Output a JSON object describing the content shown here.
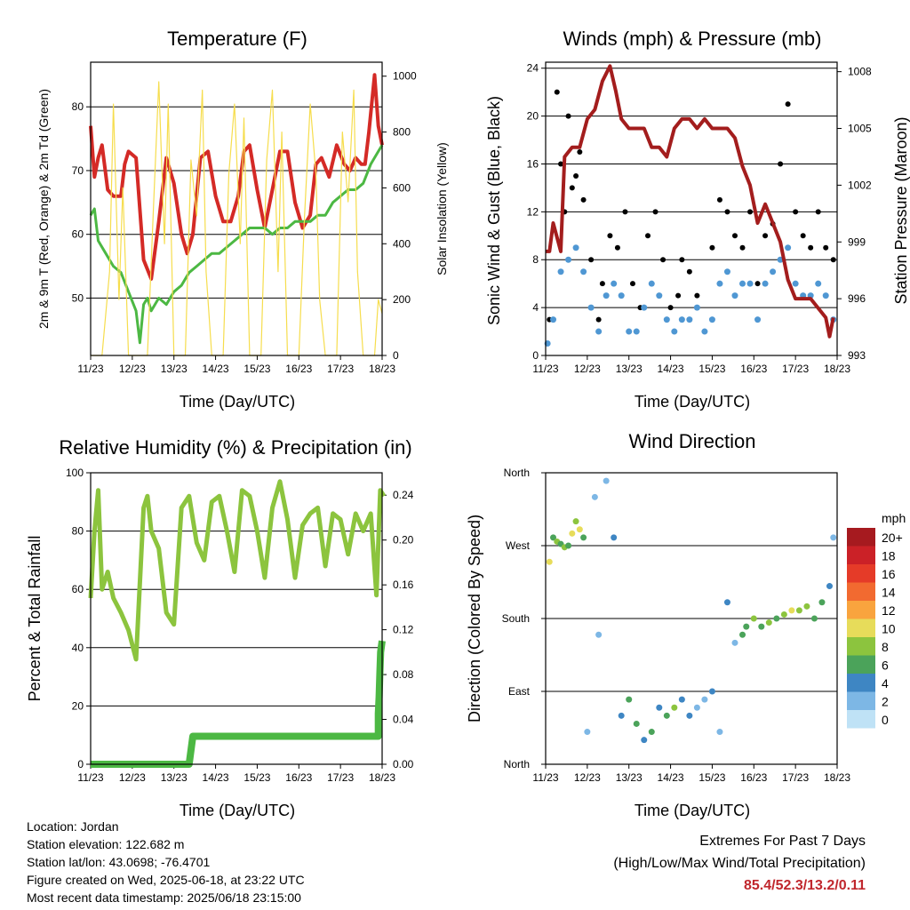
{
  "time_ticks": [
    "11/23",
    "12/23",
    "13/23",
    "14/23",
    "15/23",
    "16/23",
    "17/23",
    "18/23"
  ],
  "footer": {
    "location": "Location: Jordan",
    "elevation": "Station elevation: 122.682 m",
    "latlon": "Station lat/lon: 43.0698; -76.4701",
    "created": "Figure created on Wed, 2025-06-18, at 23:22 UTC",
    "timestamp": "Most recent data timestamp: 2025/06/18 23:15:00"
  },
  "extremes": {
    "title": "Extremes For Past 7 Days",
    "subtitle": "(High/Low/Max Wind/Total Precipitation)",
    "values": "85.4/52.3/13.2/0.11"
  },
  "colors": {
    "temp_red": "#d42a26",
    "temp_orange": "#f08a30",
    "dewpoint": "#4cb843",
    "solar": "#f6dd4d",
    "wind": "#4f97d3",
    "gust": "#000000",
    "pressure": "#a31d1d",
    "rh": "#8cc43e",
    "precip": "#4cb843"
  },
  "chart_data": [
    {
      "type": "line",
      "title": "Temperature (F)",
      "xlabel": "Time (Day/UTC)",
      "ylabel": "2m & 9m T (Red, Orange) & 2m Td (Green)",
      "ylabel_right": "Solar Insolation (Yellow)",
      "x_ticks": [
        "11/23",
        "12/23",
        "13/23",
        "14/23",
        "15/23",
        "16/23",
        "17/23",
        "18/23"
      ],
      "y_ticks": [
        50,
        60,
        70,
        80
      ],
      "y2_ticks": [
        0,
        200,
        400,
        600,
        800,
        1000
      ],
      "ylim": [
        41,
        87
      ],
      "y2lim": [
        0,
        1050
      ],
      "series": [
        {
          "name": "2m T",
          "color": "#d42a26",
          "width": 4,
          "x": [
            0,
            0.1,
            0.2,
            0.3,
            0.45,
            0.6,
            0.8,
            0.9,
            1.0,
            1.2,
            1.4,
            1.6,
            1.8,
            2.0,
            2.2,
            2.4,
            2.55,
            2.7,
            2.9,
            3.1,
            3.3,
            3.5,
            3.7,
            3.9,
            4.05,
            4.2,
            4.4,
            4.6,
            4.8,
            5.0,
            5.2,
            5.4,
            5.6,
            5.8,
            5.95,
            6.1,
            6.3,
            6.5,
            6.7,
            6.85,
            7.0,
            7.15,
            7.25,
            7.35,
            7.5,
            7.6,
            7.7
          ],
          "values": [
            77,
            69,
            72,
            74,
            67,
            66,
            66,
            71,
            73,
            72,
            56,
            53,
            62,
            72,
            68,
            60,
            57,
            60,
            72,
            73,
            66,
            62,
            62,
            66,
            73,
            74,
            67,
            61,
            67,
            73,
            73,
            65,
            61,
            63,
            71,
            72,
            69,
            74,
            71,
            70,
            72,
            71,
            71,
            76,
            85,
            77,
            74
          ]
        },
        {
          "name": "2m Td",
          "color": "#4cb843",
          "width": 3,
          "x": [
            0,
            0.1,
            0.2,
            0.4,
            0.6,
            0.8,
            1.0,
            1.2,
            1.3,
            1.4,
            1.5,
            1.6,
            1.8,
            2.0,
            2.2,
            2.4,
            2.6,
            2.8,
            3.0,
            3.2,
            3.4,
            3.6,
            3.8,
            4.0,
            4.2,
            4.4,
            4.6,
            4.8,
            5.0,
            5.2,
            5.4,
            5.6,
            5.8,
            6.0,
            6.2,
            6.4,
            6.6,
            6.8,
            7.0,
            7.2,
            7.4,
            7.6,
            7.7
          ],
          "values": [
            63,
            64,
            59,
            57,
            55,
            54,
            51,
            48,
            43,
            49,
            50,
            48,
            50,
            49,
            51,
            52,
            54,
            55,
            56,
            57,
            57,
            58,
            59,
            60,
            61,
            61,
            61,
            60,
            61,
            61,
            62,
            62,
            62,
            63,
            63,
            65,
            66,
            67,
            67,
            68,
            71,
            73,
            74
          ]
        },
        {
          "name": "Solar Insolation",
          "axis": "right",
          "color": "#f6dd4d",
          "width": 1.2,
          "x": [
            0,
            0.3,
            0.5,
            0.6,
            0.75,
            0.85,
            1.0,
            1.5,
            1.65,
            1.8,
            1.95,
            2.05,
            2.2,
            2.5,
            2.65,
            2.8,
            2.95,
            3.05,
            3.2,
            3.5,
            3.65,
            3.8,
            3.95,
            4.05,
            4.2,
            4.5,
            4.65,
            4.8,
            4.95,
            5.05,
            5.2,
            5.5,
            5.65,
            5.8,
            5.95,
            6.05,
            6.2,
            6.5,
            6.65,
            6.8,
            6.95,
            7.05,
            7.2,
            7.5,
            7.6,
            7.7
          ],
          "values": [
            0,
            0,
            300,
            900,
            200,
            600,
            0,
            0,
            500,
            980,
            400,
            900,
            0,
            0,
            700,
            500,
            950,
            300,
            0,
            0,
            650,
            900,
            400,
            850,
            0,
            0,
            700,
            950,
            300,
            800,
            0,
            0,
            500,
            900,
            650,
            200,
            0,
            0,
            800,
            550,
            950,
            300,
            0,
            0,
            200,
            150
          ]
        }
      ]
    },
    {
      "type": "scatter",
      "title": "Winds (mph) & Pressure (mb)",
      "xlabel": "Time (Day/UTC)",
      "ylabel": "Sonic Wind & Gust (Blue, Black)",
      "ylabel_right": "Station Pressure (Maroon)",
      "x_ticks": [
        "11/23",
        "12/23",
        "13/23",
        "14/23",
        "15/23",
        "16/23",
        "17/23",
        "18/23"
      ],
      "y_ticks": [
        0,
        4,
        8,
        12,
        16,
        20,
        24
      ],
      "y2_ticks": [
        993,
        996,
        999,
        1002,
        1005,
        1008
      ],
      "ylim": [
        0,
        24.5
      ],
      "y2lim": [
        993,
        1008.5
      ],
      "series": [
        {
          "name": "Gust",
          "color": "#000000",
          "x": [
            0.1,
            0.3,
            0.4,
            0.5,
            0.6,
            0.7,
            0.8,
            0.9,
            1.0,
            1.2,
            1.4,
            1.5,
            1.7,
            1.9,
            2.1,
            2.3,
            2.5,
            2.7,
            2.9,
            3.1,
            3.3,
            3.5,
            3.6,
            3.8,
            4.0,
            4.2,
            4.4,
            4.6,
            4.8,
            5.0,
            5.2,
            5.4,
            5.6,
            5.8,
            6.0,
            6.2,
            6.4,
            6.6,
            6.8,
            7.0,
            7.2,
            7.4,
            7.6
          ],
          "values": [
            3,
            22,
            16,
            12,
            20,
            14,
            15,
            17,
            13,
            8,
            3,
            6,
            10,
            9,
            12,
            6,
            4,
            10,
            12,
            8,
            4,
            5,
            8,
            7,
            5,
            2,
            9,
            13,
            12,
            10,
            9,
            12,
            6,
            10,
            11,
            16,
            21,
            12,
            10,
            9,
            12,
            9,
            8
          ]
        },
        {
          "name": "Wind",
          "color": "#4f97d3",
          "x": [
            0.05,
            0.2,
            0.4,
            0.6,
            0.8,
            1.0,
            1.2,
            1.4,
            1.6,
            1.8,
            2.0,
            2.2,
            2.4,
            2.6,
            2.8,
            3.0,
            3.2,
            3.4,
            3.6,
            3.8,
            4.0,
            4.2,
            4.4,
            4.6,
            4.8,
            5.0,
            5.2,
            5.4,
            5.6,
            5.8,
            6.0,
            6.2,
            6.4,
            6.6,
            6.8,
            7.0,
            7.2,
            7.4,
            7.6
          ],
          "values": [
            1,
            3,
            7,
            8,
            9,
            7,
            4,
            2,
            5,
            6,
            5,
            2,
            2,
            4,
            6,
            5,
            3,
            2,
            3,
            3,
            4,
            2,
            3,
            6,
            7,
            5,
            6,
            6,
            3,
            6,
            7,
            8,
            9,
            6,
            5,
            5,
            6,
            5,
            3
          ]
        },
        {
          "name": "Station Pressure",
          "axis": "right",
          "color": "#a31d1d",
          "width": 4,
          "x": [
            0,
            0.1,
            0.2,
            0.4,
            0.5,
            0.7,
            0.9,
            1.1,
            1.3,
            1.5,
            1.7,
            1.85,
            2.0,
            2.2,
            2.4,
            2.6,
            2.8,
            3.0,
            3.2,
            3.4,
            3.6,
            3.8,
            4.0,
            4.2,
            4.4,
            4.6,
            4.8,
            5.0,
            5.2,
            5.4,
            5.6,
            5.8,
            6.0,
            6.2,
            6.4,
            6.6,
            6.8,
            7.0,
            7.2,
            7.4,
            7.5,
            7.6
          ],
          "values": [
            998.5,
            998.5,
            1000,
            998.5,
            1003.5,
            1004,
            1004,
            1005.5,
            1006,
            1007.5,
            1008.3,
            1007,
            1005.5,
            1005,
            1005,
            1005,
            1004,
            1004,
            1003.5,
            1005,
            1005.5,
            1005.5,
            1005,
            1005.5,
            1005,
            1005,
            1005,
            1004.5,
            1003,
            1002,
            1000,
            1001,
            1000,
            999,
            997,
            996,
            996,
            996,
            995.5,
            995,
            994,
            995
          ]
        }
      ]
    },
    {
      "type": "line",
      "title": "Relative Humidity (%) & Precipitation (in)",
      "xlabel": "Time (Day/UTC)",
      "ylabel": "Percent & Total Rainfall",
      "x_ticks": [
        "11/23",
        "12/23",
        "13/23",
        "14/23",
        "15/23",
        "16/23",
        "17/23",
        "18/23"
      ],
      "y_ticks": [
        0,
        20,
        40,
        60,
        80,
        100
      ],
      "y2_ticks": [
        "0.00",
        "0.04",
        "0.08",
        "0.12",
        "0.16",
        "0.20",
        "0.24"
      ],
      "ylim": [
        0,
        100
      ],
      "y2lim": [
        0,
        0.26
      ],
      "series": [
        {
          "name": "Relative Humidity",
          "color": "#8cc43e",
          "width": 5,
          "x": [
            0,
            0.1,
            0.2,
            0.3,
            0.45,
            0.6,
            0.8,
            1.0,
            1.2,
            1.4,
            1.5,
            1.6,
            1.8,
            2.0,
            2.2,
            2.4,
            2.6,
            2.8,
            3.0,
            3.2,
            3.4,
            3.6,
            3.8,
            4.0,
            4.2,
            4.4,
            4.6,
            4.8,
            5.0,
            5.2,
            5.4,
            5.6,
            5.8,
            6.0,
            6.2,
            6.4,
            6.6,
            6.8,
            7.0,
            7.2,
            7.4,
            7.55,
            7.65,
            7.75
          ],
          "values": [
            57,
            80,
            94,
            60,
            66,
            57,
            52,
            46,
            36,
            88,
            92,
            80,
            74,
            52,
            48,
            88,
            92,
            76,
            70,
            90,
            92,
            80,
            66,
            94,
            92,
            80,
            64,
            88,
            97,
            84,
            64,
            82,
            86,
            88,
            68,
            86,
            84,
            72,
            86,
            80,
            86,
            58,
            94,
            92
          ]
        },
        {
          "name": "Total Precipitation",
          "axis": "right",
          "color": "#4cb843",
          "width": 8,
          "x": [
            0,
            1,
            2,
            2.6,
            2.7,
            3,
            4,
            5,
            6,
            7,
            7.6,
            7.6,
            7.62,
            7.64,
            7.66,
            7.7
          ],
          "values": [
            0,
            0,
            0,
            0,
            0.025,
            0.025,
            0.025,
            0.025,
            0.025,
            0.025,
            0.025,
            0.045,
            0.06,
            0.08,
            0.1,
            0.11
          ]
        }
      ]
    },
    {
      "type": "scatter",
      "title": "Wind Direction",
      "xlabel": "Time (Day/UTC)",
      "ylabel": "Direction (Colored By Speed)",
      "x_ticks": [
        "11/23",
        "12/23",
        "13/23",
        "14/23",
        "15/23",
        "16/23",
        "17/23",
        "18/23"
      ],
      "y_ticks": [
        "North",
        "East",
        "South",
        "West",
        "North"
      ],
      "ylim": [
        0,
        360
      ],
      "legend": {
        "title": "mph",
        "labels": [
          "20+",
          "18",
          "16",
          "14",
          "12",
          "10",
          "8",
          "6",
          "4",
          "2",
          "0"
        ],
        "colors": [
          "#a61a1f",
          "#cb2127",
          "#e53b28",
          "#f26a30",
          "#f9a43e",
          "#e7dc5a",
          "#8cc43e",
          "#4ba35a",
          "#3e86c3",
          "#7db7e5",
          "#bfe2f6"
        ]
      },
      "points": {
        "x": [
          0.1,
          0.2,
          0.3,
          0.4,
          0.5,
          0.6,
          0.7,
          0.8,
          0.9,
          1.0,
          1.1,
          1.3,
          1.4,
          1.6,
          1.8,
          2.0,
          2.2,
          2.4,
          2.6,
          2.8,
          3.0,
          3.2,
          3.4,
          3.6,
          3.8,
          4.0,
          4.2,
          4.4,
          4.6,
          4.8,
          5.0,
          5.2,
          5.3,
          5.5,
          5.7,
          5.9,
          6.1,
          6.3,
          6.5,
          6.7,
          6.9,
          7.1,
          7.3,
          7.5,
          7.6
        ],
        "direction": [
          250,
          280,
          275,
          272,
          268,
          270,
          285,
          300,
          290,
          280,
          40,
          330,
          160,
          350,
          280,
          60,
          80,
          50,
          30,
          40,
          70,
          60,
          70,
          80,
          60,
          70,
          80,
          90,
          40,
          200,
          150,
          160,
          170,
          180,
          170,
          175,
          180,
          185,
          190,
          190,
          195,
          180,
          200,
          220,
          280
        ],
        "speed": [
          10,
          6,
          8,
          6,
          8,
          6,
          10,
          8,
          10,
          6,
          2,
          2,
          2,
          2,
          4,
          4,
          6,
          6,
          4,
          6,
          4,
          6,
          8,
          4,
          4,
          2,
          2,
          4,
          2,
          4,
          2,
          6,
          6,
          8,
          6,
          8,
          6,
          8,
          10,
          8,
          8,
          6,
          6,
          4,
          2
        ]
      }
    }
  ]
}
